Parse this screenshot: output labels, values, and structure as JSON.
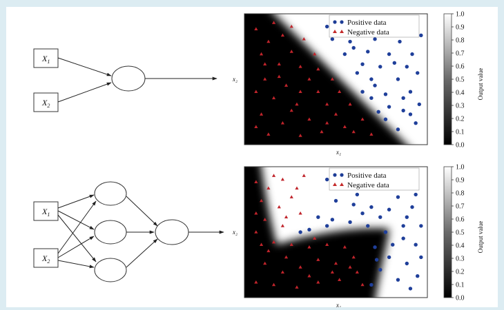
{
  "colors": {
    "page_border": "#dcecf2",
    "positive": "#1f3f9a",
    "negative": "#c0242b",
    "legend_positive": "#1d3c96",
    "legend_negative": "#c42a2a"
  },
  "networks": [
    {
      "inputs": [
        {
          "label": "X",
          "sub": "1"
        },
        {
          "label": "X",
          "sub": "2"
        }
      ],
      "hidden_count": 0
    },
    {
      "inputs": [
        {
          "label": "X",
          "sub": "1"
        },
        {
          "label": "X",
          "sub": "2"
        }
      ],
      "hidden_count": 3
    }
  ],
  "chart_data": [
    {
      "type": "scatter",
      "xlabel": "x₁",
      "ylabel": "x₂",
      "legend": [
        "Positive data",
        "Negative data"
      ],
      "legend_placement": "top-right",
      "colorbar": {
        "label": "Output value",
        "ticks": [
          "1.0",
          "0.9",
          "0.8",
          "0.7",
          "0.6",
          "0.5",
          "0.4",
          "0.3",
          "0.2",
          "0.1",
          "0.0"
        ]
      },
      "xlim": [
        0,
        1
      ],
      "ylim": [
        0,
        1
      ],
      "boundary": "linear",
      "positive_points": [
        [
          0.7,
          0.97
        ],
        [
          0.82,
          0.95
        ],
        [
          0.9,
          0.9
        ],
        [
          0.86,
          0.8
        ],
        [
          0.93,
          0.7
        ],
        [
          0.96,
          0.55
        ],
        [
          0.8,
          0.7
        ],
        [
          0.72,
          0.82
        ],
        [
          0.62,
          0.86
        ],
        [
          0.55,
          0.93
        ],
        [
          0.75,
          0.6
        ],
        [
          0.85,
          0.5
        ],
        [
          0.92,
          0.4
        ],
        [
          0.97,
          0.3
        ],
        [
          0.88,
          0.25
        ],
        [
          0.78,
          0.38
        ],
        [
          0.7,
          0.5
        ],
        [
          0.65,
          0.62
        ],
        [
          0.6,
          0.75
        ],
        [
          0.5,
          0.88
        ],
        [
          0.95,
          0.15
        ],
        [
          0.85,
          0.1
        ],
        [
          0.78,
          0.18
        ],
        [
          0.7,
          0.35
        ],
        [
          0.62,
          0.55
        ],
        [
          0.98,
          0.85
        ],
        [
          0.75,
          0.9
        ],
        [
          0.68,
          0.72
        ],
        [
          0.58,
          0.8
        ],
        [
          0.83,
          0.63
        ],
        [
          0.9,
          0.6
        ],
        [
          0.72,
          0.45
        ],
        [
          0.8,
          0.28
        ],
        [
          0.88,
          0.35
        ],
        [
          0.65,
          0.4
        ],
        [
          0.74,
          0.24
        ],
        [
          0.92,
          0.22
        ],
        [
          0.55,
          0.7
        ],
        [
          0.48,
          0.82
        ],
        [
          0.45,
          0.92
        ]
      ],
      "negative_points": [
        [
          0.05,
          0.9
        ],
        [
          0.12,
          0.8
        ],
        [
          0.2,
          0.85
        ],
        [
          0.08,
          0.7
        ],
        [
          0.18,
          0.62
        ],
        [
          0.25,
          0.72
        ],
        [
          0.3,
          0.6
        ],
        [
          0.1,
          0.5
        ],
        [
          0.22,
          0.45
        ],
        [
          0.35,
          0.5
        ],
        [
          0.4,
          0.4
        ],
        [
          0.15,
          0.35
        ],
        [
          0.28,
          0.3
        ],
        [
          0.45,
          0.3
        ],
        [
          0.5,
          0.22
        ],
        [
          0.08,
          0.22
        ],
        [
          0.2,
          0.15
        ],
        [
          0.35,
          0.18
        ],
        [
          0.55,
          0.12
        ],
        [
          0.6,
          0.08
        ],
        [
          0.42,
          0.08
        ],
        [
          0.3,
          0.05
        ],
        [
          0.12,
          0.06
        ],
        [
          0.32,
          0.82
        ],
        [
          0.38,
          0.7
        ],
        [
          0.05,
          0.4
        ],
        [
          0.25,
          0.92
        ],
        [
          0.15,
          0.95
        ],
        [
          0.48,
          0.5
        ],
        [
          0.52,
          0.4
        ],
        [
          0.58,
          0.3
        ],
        [
          0.65,
          0.18
        ],
        [
          0.7,
          0.06
        ],
        [
          0.4,
          0.58
        ],
        [
          0.3,
          0.4
        ],
        [
          0.18,
          0.52
        ],
        [
          0.1,
          0.62
        ],
        [
          0.45,
          0.15
        ],
        [
          0.25,
          0.25
        ],
        [
          0.05,
          0.12
        ]
      ]
    },
    {
      "type": "scatter",
      "xlabel": "x₁",
      "ylabel": "x₂",
      "legend": [
        "Positive data",
        "Negative data"
      ],
      "legend_placement": "top-right",
      "colorbar": {
        "label": "Output value",
        "ticks": [
          "1.0",
          "0.9",
          "0.8",
          "0.7",
          "0.6",
          "0.5",
          "0.4",
          "0.3",
          "0.2",
          "0.1",
          "0.0"
        ]
      },
      "xlim": [
        0,
        1
      ],
      "ylim": [
        0,
        1
      ],
      "boundary": "nonlinear",
      "positive_points": [
        [
          0.45,
          0.92
        ],
        [
          0.55,
          0.88
        ],
        [
          0.65,
          0.9
        ],
        [
          0.75,
          0.85
        ],
        [
          0.85,
          0.9
        ],
        [
          0.95,
          0.8
        ],
        [
          0.5,
          0.75
        ],
        [
          0.6,
          0.72
        ],
        [
          0.7,
          0.7
        ],
        [
          0.8,
          0.68
        ],
        [
          0.9,
          0.62
        ],
        [
          0.98,
          0.55
        ],
        [
          0.4,
          0.62
        ],
        [
          0.48,
          0.6
        ],
        [
          0.58,
          0.58
        ],
        [
          0.68,
          0.55
        ],
        [
          0.78,
          0.5
        ],
        [
          0.88,
          0.45
        ],
        [
          0.95,
          0.4
        ],
        [
          0.72,
          0.38
        ],
        [
          0.8,
          0.3
        ],
        [
          0.9,
          0.25
        ],
        [
          0.96,
          0.15
        ],
        [
          0.85,
          0.12
        ],
        [
          0.75,
          0.2
        ],
        [
          0.7,
          0.08
        ],
        [
          0.92,
          0.05
        ],
        [
          0.35,
          0.52
        ],
        [
          0.55,
          0.95
        ],
        [
          0.62,
          0.8
        ],
        [
          0.85,
          0.78
        ],
        [
          0.93,
          0.7
        ],
        [
          0.75,
          0.62
        ],
        [
          0.65,
          0.65
        ],
        [
          0.82,
          0.4
        ],
        [
          0.98,
          0.3
        ],
        [
          0.88,
          0.55
        ],
        [
          0.3,
          0.5
        ],
        [
          0.45,
          0.55
        ],
        [
          0.73,
          0.28
        ]
      ],
      "negative_points": [
        [
          0.05,
          0.9
        ],
        [
          0.12,
          0.85
        ],
        [
          0.2,
          0.92
        ],
        [
          0.28,
          0.85
        ],
        [
          0.08,
          0.75
        ],
        [
          0.18,
          0.7
        ],
        [
          0.25,
          0.78
        ],
        [
          0.1,
          0.6
        ],
        [
          0.2,
          0.55
        ],
        [
          0.05,
          0.5
        ],
        [
          0.15,
          0.42
        ],
        [
          0.25,
          0.4
        ],
        [
          0.35,
          0.38
        ],
        [
          0.45,
          0.4
        ],
        [
          0.55,
          0.38
        ],
        [
          0.6,
          0.3
        ],
        [
          0.5,
          0.25
        ],
        [
          0.4,
          0.28
        ],
        [
          0.3,
          0.22
        ],
        [
          0.2,
          0.18
        ],
        [
          0.1,
          0.25
        ],
        [
          0.05,
          0.1
        ],
        [
          0.15,
          0.08
        ],
        [
          0.28,
          0.06
        ],
        [
          0.4,
          0.1
        ],
        [
          0.52,
          0.12
        ],
        [
          0.62,
          0.18
        ],
        [
          0.65,
          0.08
        ],
        [
          0.35,
          0.15
        ],
        [
          0.22,
          0.3
        ],
        [
          0.12,
          0.35
        ],
        [
          0.3,
          0.65
        ],
        [
          0.22,
          0.62
        ],
        [
          0.15,
          0.95
        ],
        [
          0.32,
          0.95
        ],
        [
          0.08,
          0.4
        ],
        [
          0.48,
          0.18
        ],
        [
          0.58,
          0.22
        ],
        [
          0.38,
          0.45
        ],
        [
          0.05,
          0.65
        ]
      ]
    }
  ]
}
